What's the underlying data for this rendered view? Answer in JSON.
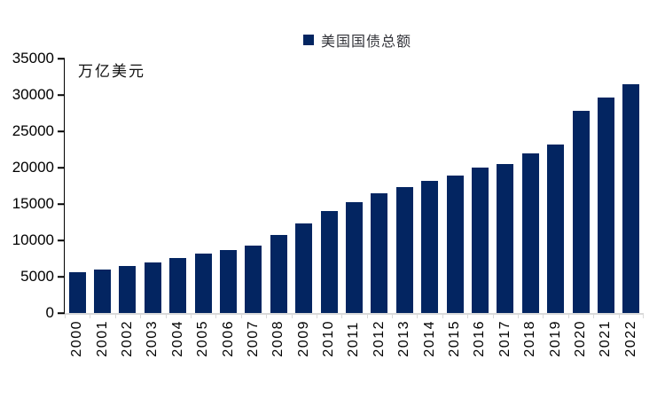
{
  "colors": {
    "bar": "#032561",
    "y_axis": "#000000",
    "x_axis": "#d9d9d9",
    "legend_text": "#33343a"
  },
  "chart_data": {
    "type": "bar",
    "title": "美国国债总额",
    "legend_label": "美国国债总额",
    "legend_position": "top-center",
    "unit_label": "万亿美元",
    "categories": [
      "2000",
      "2001",
      "2002",
      "2003",
      "2004",
      "2005",
      "2006",
      "2007",
      "2008",
      "2009",
      "2010",
      "2011",
      "2012",
      "2013",
      "2014",
      "2015",
      "2016",
      "2017",
      "2018",
      "2019",
      "2020",
      "2021",
      "2022"
    ],
    "values": [
      5662,
      5943,
      6406,
      6998,
      7596,
      8170,
      8680,
      9229,
      10700,
      12311,
      14025,
      15223,
      16433,
      17352,
      18141,
      18922,
      19977,
      20493,
      21974,
      23201,
      27748,
      29617,
      31420
    ],
    "ylim": [
      0,
      35000
    ],
    "yticks": [
      0,
      5000,
      10000,
      15000,
      20000,
      25000,
      30000,
      35000
    ],
    "grid": false
  }
}
